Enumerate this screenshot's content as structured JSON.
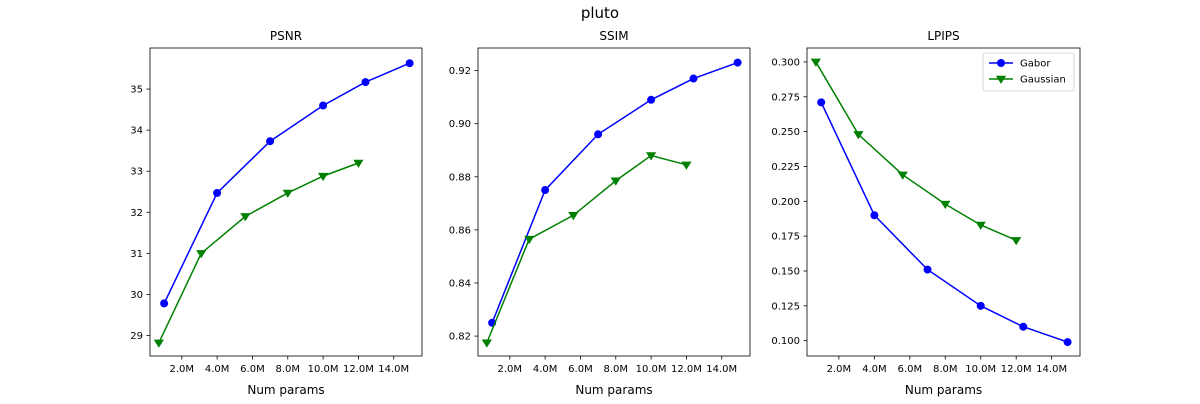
{
  "figure": {
    "title": "pluto"
  },
  "chart_data": [
    {
      "type": "line",
      "title": "PSNR",
      "xlabel": "Num params",
      "ylabel": "",
      "xlim": [
        0.2,
        15.6
      ],
      "ylim": [
        28.5,
        36.0
      ],
      "xticks": [
        2,
        4,
        6,
        8,
        10,
        12,
        14
      ],
      "xtick_labels": [
        "2.0M",
        "4.0M",
        "6.0M",
        "8.0M",
        "10.0M",
        "12.0M",
        "14.0M"
      ],
      "yticks": [
        29,
        30,
        31,
        32,
        33,
        34,
        35
      ],
      "ytick_labels": [
        "29",
        "30",
        "31",
        "32",
        "33",
        "34",
        "35"
      ],
      "grid": false,
      "legend": null,
      "series": [
        {
          "name": "Gabor",
          "color": "#0000ff",
          "marker": "circle",
          "x": [
            1.0,
            4.0,
            7.0,
            10.0,
            12.4,
            14.9
          ],
          "y": [
            29.78,
            32.47,
            33.73,
            34.6,
            35.17,
            35.63
          ]
        },
        {
          "name": "Gaussian",
          "color": "#008000",
          "marker": "triangle-down",
          "x": [
            0.7,
            3.1,
            5.6,
            8.0,
            10.0,
            12.0
          ],
          "y": [
            28.82,
            31.0,
            31.9,
            32.47,
            32.88,
            33.2
          ]
        }
      ]
    },
    {
      "type": "line",
      "title": "SSIM",
      "xlabel": "Num params",
      "ylabel": "",
      "xlim": [
        0.2,
        15.6
      ],
      "ylim": [
        0.8125,
        0.9285
      ],
      "xticks": [
        2,
        4,
        6,
        8,
        10,
        12,
        14
      ],
      "xtick_labels": [
        "2.0M",
        "4.0M",
        "6.0M",
        "8.0M",
        "10.0M",
        "12.0M",
        "14.0M"
      ],
      "yticks": [
        0.82,
        0.84,
        0.86,
        0.88,
        0.9,
        0.92
      ],
      "ytick_labels": [
        "0.82",
        "0.84",
        "0.86",
        "0.88",
        "0.90",
        "0.92"
      ],
      "grid": false,
      "legend": null,
      "series": [
        {
          "name": "Gabor",
          "color": "#0000ff",
          "marker": "circle",
          "x": [
            1.0,
            4.0,
            7.0,
            10.0,
            12.4,
            14.9
          ],
          "y": [
            0.825,
            0.875,
            0.896,
            0.909,
            0.917,
            0.923
          ]
        },
        {
          "name": "Gaussian",
          "color": "#008000",
          "marker": "triangle-down",
          "x": [
            0.7,
            3.1,
            5.6,
            8.0,
            10.0,
            12.0
          ],
          "y": [
            0.8175,
            0.8565,
            0.8655,
            0.8785,
            0.888,
            0.8845
          ]
        }
      ]
    },
    {
      "type": "line",
      "title": "LPIPS",
      "xlabel": "Num params",
      "ylabel": "",
      "xlim": [
        0.2,
        15.6
      ],
      "ylim": [
        0.089,
        0.31
      ],
      "xticks": [
        2,
        4,
        6,
        8,
        10,
        12,
        14
      ],
      "xtick_labels": [
        "2.0M",
        "4.0M",
        "6.0M",
        "8.0M",
        "10.0M",
        "12.0M",
        "14.0M"
      ],
      "yticks": [
        0.1,
        0.125,
        0.15,
        0.175,
        0.2,
        0.225,
        0.25,
        0.275,
        0.3
      ],
      "ytick_labels": [
        "0.100",
        "0.125",
        "0.150",
        "0.175",
        "0.200",
        "0.225",
        "0.250",
        "0.275",
        "0.300"
      ],
      "grid": false,
      "legend": "upper right",
      "series": [
        {
          "name": "Gabor",
          "color": "#0000ff",
          "marker": "circle",
          "x": [
            1.0,
            4.0,
            7.0,
            10.0,
            12.4,
            14.9
          ],
          "y": [
            0.271,
            0.19,
            0.151,
            0.125,
            0.11,
            0.099
          ]
        },
        {
          "name": "Gaussian",
          "color": "#008000",
          "marker": "triangle-down",
          "x": [
            0.7,
            3.1,
            5.6,
            8.0,
            10.0,
            12.0
          ],
          "y": [
            0.3,
            0.248,
            0.219,
            0.198,
            0.183,
            0.172
          ]
        }
      ]
    }
  ]
}
